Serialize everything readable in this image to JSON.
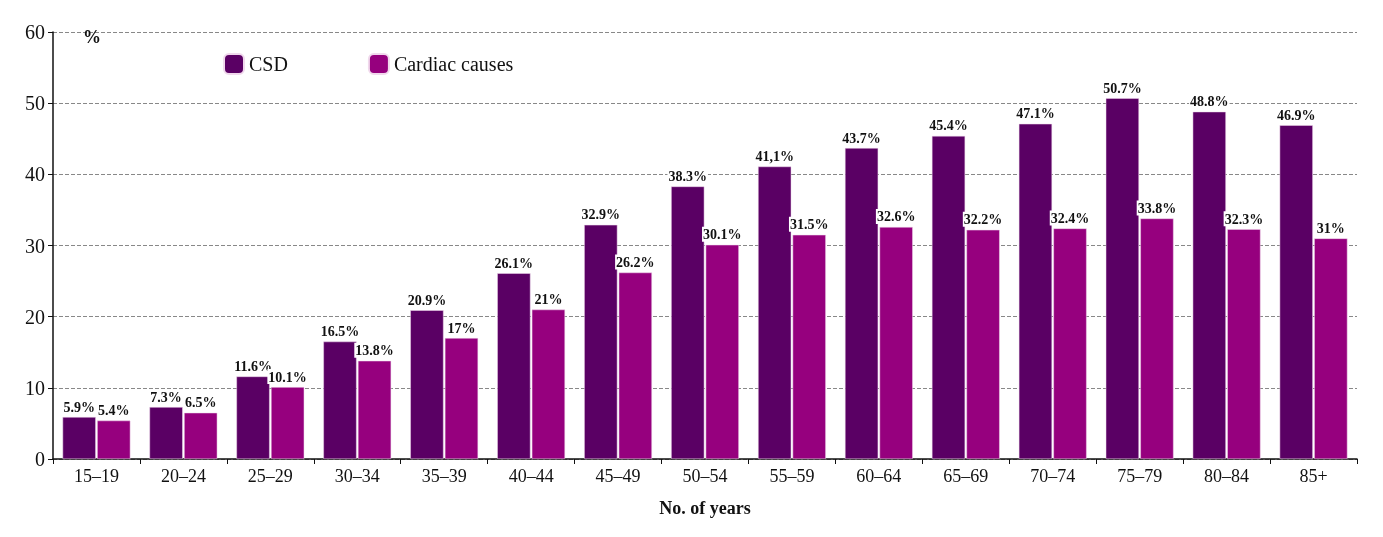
{
  "chart_data": {
    "type": "bar",
    "xlabel": "No. of years",
    "ylabel": "%",
    "categories": [
      "15–19",
      "20–24",
      "25–29",
      "30–34",
      "35–39",
      "40–44",
      "45–49",
      "50–54",
      "55–59",
      "60–64",
      "65–69",
      "70–74",
      "75–79",
      "80–84",
      "85+"
    ],
    "series": [
      {
        "name": "CSD",
        "color": "#5a0064",
        "values": [
          5.9,
          7.3,
          11.6,
          16.5,
          20.9,
          26.1,
          32.9,
          38.3,
          41.1,
          43.7,
          45.4,
          47.1,
          50.7,
          48.8,
          46.9
        ],
        "value_labels": [
          "5.9%",
          "7.3%",
          "11.6%",
          "16.5%",
          "20.9%",
          "26.1%",
          "32.9%",
          "38.3%",
          "41,1%",
          "43.7%",
          "45.4%",
          "47.1%",
          "50.7%",
          "48.8%",
          "46.9%"
        ]
      },
      {
        "name": "Cardiac causes",
        "color": "#96007e",
        "values": [
          5.4,
          6.5,
          10.1,
          13.8,
          17,
          21,
          26.2,
          30.1,
          31.5,
          32.6,
          32.2,
          32.4,
          33.8,
          32.3,
          31
        ],
        "value_labels": [
          "5.4%",
          "6.5%",
          "10.1%",
          "13.8%",
          "17%",
          "21%",
          "26.2%",
          "30.1%",
          "31.5%",
          "32.6%",
          "32.2%",
          "32.4%",
          "33.8%",
          "32.3%",
          "31%"
        ]
      }
    ],
    "ylim": [
      0,
      60
    ],
    "yticks": [
      0,
      10,
      20,
      30,
      40,
      50,
      60
    ],
    "grid": "y",
    "legend": "top left"
  }
}
